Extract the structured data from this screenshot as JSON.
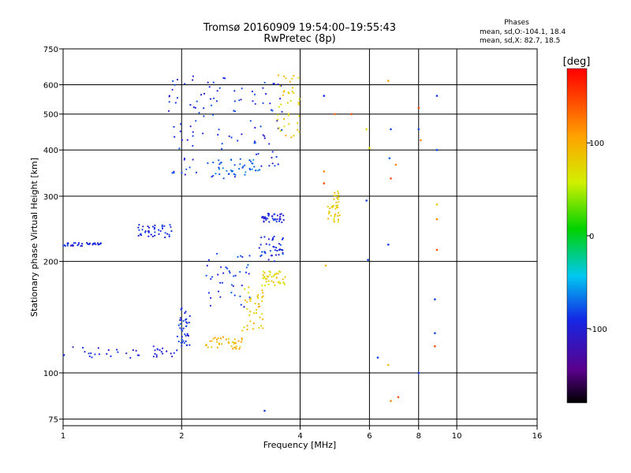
{
  "chart_data": {
    "type": "scatter",
    "title": "Tromsø 20160909 19:54:00–19:55:43",
    "subtitle": "RwPretec (8p)",
    "xlabel": "Frequency [MHz]",
    "ylabel": "Stationary phase Virtual Height [km]",
    "x_scale": "log",
    "y_scale": "log",
    "xlim": [
      1,
      16
    ],
    "ylim": [
      72,
      750
    ],
    "x_ticks": [
      1,
      2,
      4,
      6,
      8,
      10,
      16
    ],
    "x_tick_labels": [
      "1",
      "2",
      "4",
      "6",
      "8",
      "10",
      "16"
    ],
    "y_ticks": [
      75,
      100,
      200,
      300,
      400,
      500,
      600,
      750
    ],
    "y_tick_labels": [
      "75",
      "100",
      "200",
      "300",
      "400",
      "500",
      "600",
      "750"
    ],
    "grid": true,
    "stats": {
      "title": "Phases",
      "line1": "mean, sd,O:-104.1, 18.4",
      "line2": "mean, sd,X:  82.7, 18.5"
    },
    "colorbar": {
      "label": "[deg]",
      "range": [
        -180,
        180
      ],
      "ticks": [
        100,
        0,
        -100
      ],
      "tick_labels": [
        "100",
        "0",
        "-100"
      ],
      "colormap": "rainbow (black→purple→blue→cyan→green→yellow→orange→red)"
    },
    "traces": [
      {
        "x0": 1.0,
        "x1": 1.95,
        "y0": 109,
        "y1": 118,
        "phase": -115
      },
      {
        "x0": 1.95,
        "x1": 2.1,
        "y0": 118,
        "y1": 150,
        "phase": -110
      },
      {
        "x0": 1.0,
        "x1": 1.25,
        "y0": 220,
        "y1": 225,
        "phase": -115
      },
      {
        "x0": 1.55,
        "x1": 1.9,
        "y0": 232,
        "y1": 252,
        "phase": -110
      },
      {
        "x0": 2.3,
        "x1": 2.85,
        "y0": 116,
        "y1": 125,
        "phase": 110
      },
      {
        "x0": 2.85,
        "x1": 3.25,
        "y0": 130,
        "y1": 172,
        "phase": 100
      },
      {
        "x0": 3.2,
        "x1": 3.7,
        "y0": 172,
        "y1": 190,
        "phase": 95
      },
      {
        "x0": 2.3,
        "x1": 3.0,
        "y0": 150,
        "y1": 210,
        "phase": -105
      },
      {
        "x0": 3.15,
        "x1": 3.65,
        "y0": 200,
        "y1": 235,
        "phase": -110
      },
      {
        "x0": 3.2,
        "x1": 3.65,
        "y0": 255,
        "y1": 270,
        "phase": -115
      },
      {
        "x0": 1.85,
        "x1": 2.2,
        "y0": 340,
        "y1": 640,
        "phase": -110
      },
      {
        "x0": 2.2,
        "x1": 3.0,
        "y0": 335,
        "y1": 630,
        "phase": -105
      },
      {
        "x0": 2.4,
        "x1": 3.2,
        "y0": 340,
        "y1": 380,
        "phase": -90
      },
      {
        "x0": 3.0,
        "x1": 3.6,
        "y0": 360,
        "y1": 620,
        "phase": -110
      },
      {
        "x0": 3.5,
        "x1": 4.0,
        "y0": 430,
        "y1": 640,
        "phase": 100
      },
      {
        "x0": 4.7,
        "x1": 5.05,
        "y0": 255,
        "y1": 310,
        "phase": 100
      }
    ],
    "scatter_points": [
      {
        "x": 4.6,
        "y": 560,
        "phase": -110
      },
      {
        "x": 4.9,
        "y": 500,
        "phase": 140
      },
      {
        "x": 5.4,
        "y": 500,
        "phase": 150
      },
      {
        "x": 5.9,
        "y": 455,
        "phase": 90
      },
      {
        "x": 6.0,
        "y": 405,
        "phase": 90
      },
      {
        "x": 6.7,
        "y": 615,
        "phase": 120
      },
      {
        "x": 6.8,
        "y": 455,
        "phase": -100
      },
      {
        "x": 6.75,
        "y": 380,
        "phase": -90
      },
      {
        "x": 6.8,
        "y": 335,
        "phase": 150
      },
      {
        "x": 7.0,
        "y": 365,
        "phase": 130
      },
      {
        "x": 6.7,
        "y": 222,
        "phase": -105
      },
      {
        "x": 6.3,
        "y": 110,
        "phase": -100
      },
      {
        "x": 6.7,
        "y": 105,
        "phase": 110
      },
      {
        "x": 6.8,
        "y": 84,
        "phase": 130
      },
      {
        "x": 7.1,
        "y": 86,
        "phase": 150
      },
      {
        "x": 8.0,
        "y": 520,
        "phase": 150
      },
      {
        "x": 8.0,
        "y": 455,
        "phase": -100
      },
      {
        "x": 8.1,
        "y": 425,
        "phase": 130
      },
      {
        "x": 8.9,
        "y": 560,
        "phase": -105
      },
      {
        "x": 8.9,
        "y": 400,
        "phase": -100
      },
      {
        "x": 8.9,
        "y": 285,
        "phase": 100
      },
      {
        "x": 8.9,
        "y": 260,
        "phase": 130
      },
      {
        "x": 8.9,
        "y": 215,
        "phase": 150
      },
      {
        "x": 8.8,
        "y": 158,
        "phase": -100
      },
      {
        "x": 8.8,
        "y": 128,
        "phase": -100
      },
      {
        "x": 8.8,
        "y": 118,
        "phase": 150
      },
      {
        "x": 8.0,
        "y": 100,
        "phase": -105
      },
      {
        "x": 4.6,
        "y": 350,
        "phase": 130
      },
      {
        "x": 4.6,
        "y": 325,
        "phase": 150
      },
      {
        "x": 4.65,
        "y": 195,
        "phase": 110
      },
      {
        "x": 3.25,
        "y": 79,
        "phase": -105
      },
      {
        "x": 5.9,
        "y": 292,
        "phase": -105
      },
      {
        "x": 5.95,
        "y": 202,
        "phase": -100
      }
    ]
  }
}
